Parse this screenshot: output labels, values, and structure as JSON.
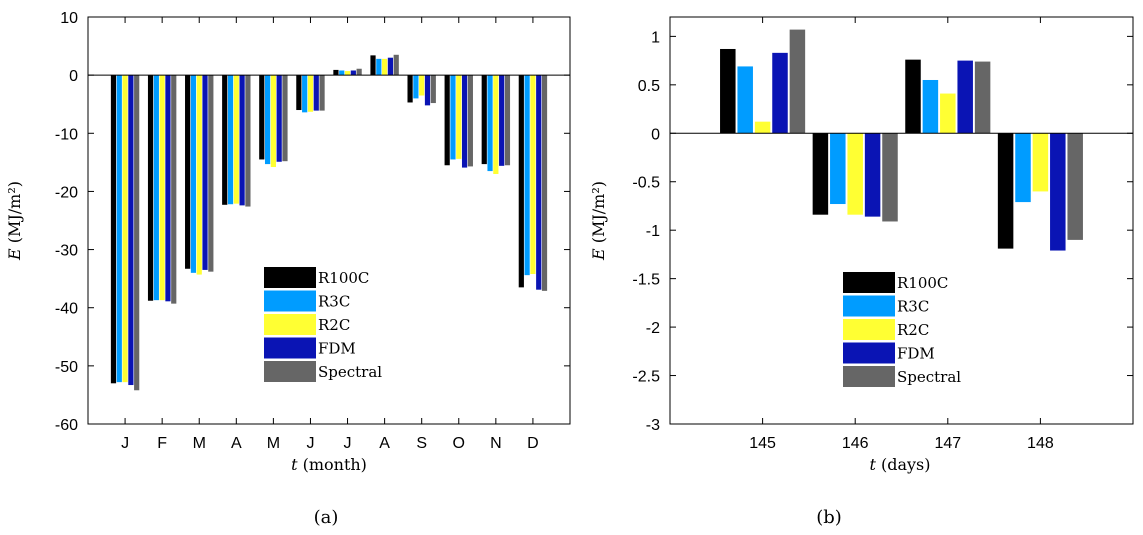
{
  "chart_data": [
    {
      "type": "bar",
      "caption": "(a)",
      "ylabel": "E (MJ/m²)",
      "xlabel": "t (month)",
      "categories": [
        "J",
        "F",
        "M",
        "A",
        "M",
        "J",
        "J",
        "A",
        "S",
        "O",
        "N",
        "D"
      ],
      "ylim": [
        -60,
        10
      ],
      "yticks": [
        10,
        0,
        -10,
        -20,
        -30,
        -40,
        -50,
        -60
      ],
      "grid": false,
      "legend_position": "lower-right",
      "series": [
        {
          "name": "R100C",
          "color": "#000000",
          "values": [
            -53.0,
            -38.8,
            -33.3,
            -22.3,
            -14.5,
            -6.0,
            0.9,
            3.4,
            -4.7,
            -15.5,
            -15.3,
            -36.5
          ]
        },
        {
          "name": "R3C",
          "color": "#009cff",
          "values": [
            -52.8,
            -38.7,
            -34.0,
            -22.2,
            -15.3,
            -6.4,
            0.8,
            2.8,
            -4.0,
            -14.5,
            -16.5,
            -34.4
          ]
        },
        {
          "name": "R2C",
          "color": "#ffff33",
          "values": [
            -52.8,
            -38.7,
            -34.3,
            -22.1,
            -15.8,
            -6.3,
            0.7,
            2.8,
            -3.5,
            -14.4,
            -17.0,
            -34.2
          ]
        },
        {
          "name": "FDM",
          "color": "#0a14b4",
          "values": [
            -53.3,
            -38.9,
            -33.5,
            -22.4,
            -14.9,
            -6.1,
            0.8,
            3.0,
            -5.2,
            -15.9,
            -15.6,
            -36.9
          ]
        },
        {
          "name": "Spectral",
          "color": "#666666",
          "values": [
            -54.2,
            -39.3,
            -33.8,
            -22.6,
            -14.8,
            -6.1,
            1.1,
            3.5,
            -4.8,
            -15.7,
            -15.5,
            -37.1
          ]
        }
      ]
    },
    {
      "type": "bar",
      "caption": "(b)",
      "ylabel": "E (MJ/m²)",
      "xlabel": "t (days)",
      "categories": [
        "145",
        "146",
        "147",
        "148"
      ],
      "ylim": [
        -3,
        1.2
      ],
      "yticks": [
        1,
        0.5,
        0,
        -0.5,
        -1,
        -1.5,
        -2,
        -2.5,
        -3
      ],
      "grid": false,
      "legend_position": "lower-left",
      "series": [
        {
          "name": "R100C",
          "color": "#000000",
          "values": [
            0.87,
            -0.84,
            0.76,
            -1.19
          ]
        },
        {
          "name": "R3C",
          "color": "#009cff",
          "values": [
            0.69,
            -0.73,
            0.55,
            -0.71
          ]
        },
        {
          "name": "R2C",
          "color": "#ffff33",
          "values": [
            0.12,
            -0.84,
            0.41,
            -0.6
          ]
        },
        {
          "name": "FDM",
          "color": "#0a14b4",
          "values": [
            0.83,
            -0.86,
            0.75,
            -1.21
          ]
        },
        {
          "name": "Spectral",
          "color": "#666666",
          "values": [
            1.07,
            -0.91,
            0.74,
            -1.1
          ]
        }
      ]
    }
  ]
}
